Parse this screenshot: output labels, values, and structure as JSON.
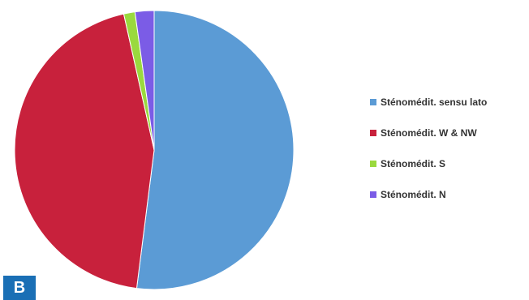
{
  "panel_label": "B",
  "chart_data": {
    "type": "pie",
    "title": "",
    "legend_position": "right",
    "slices": [
      {
        "label": "Sténoméd​it. sensu lato",
        "value": 52.0,
        "color": "#5b9bd5"
      },
      {
        "label": "Sténoméd​it. W & NW",
        "value": 44.5,
        "color": "#c8213c"
      },
      {
        "label": "Sténoméd​it. S",
        "value": 1.3,
        "color": "#9ad93e"
      },
      {
        "label": "Sténoméd​it. N",
        "value": 2.2,
        "color": "#7b5ce6"
      }
    ]
  }
}
